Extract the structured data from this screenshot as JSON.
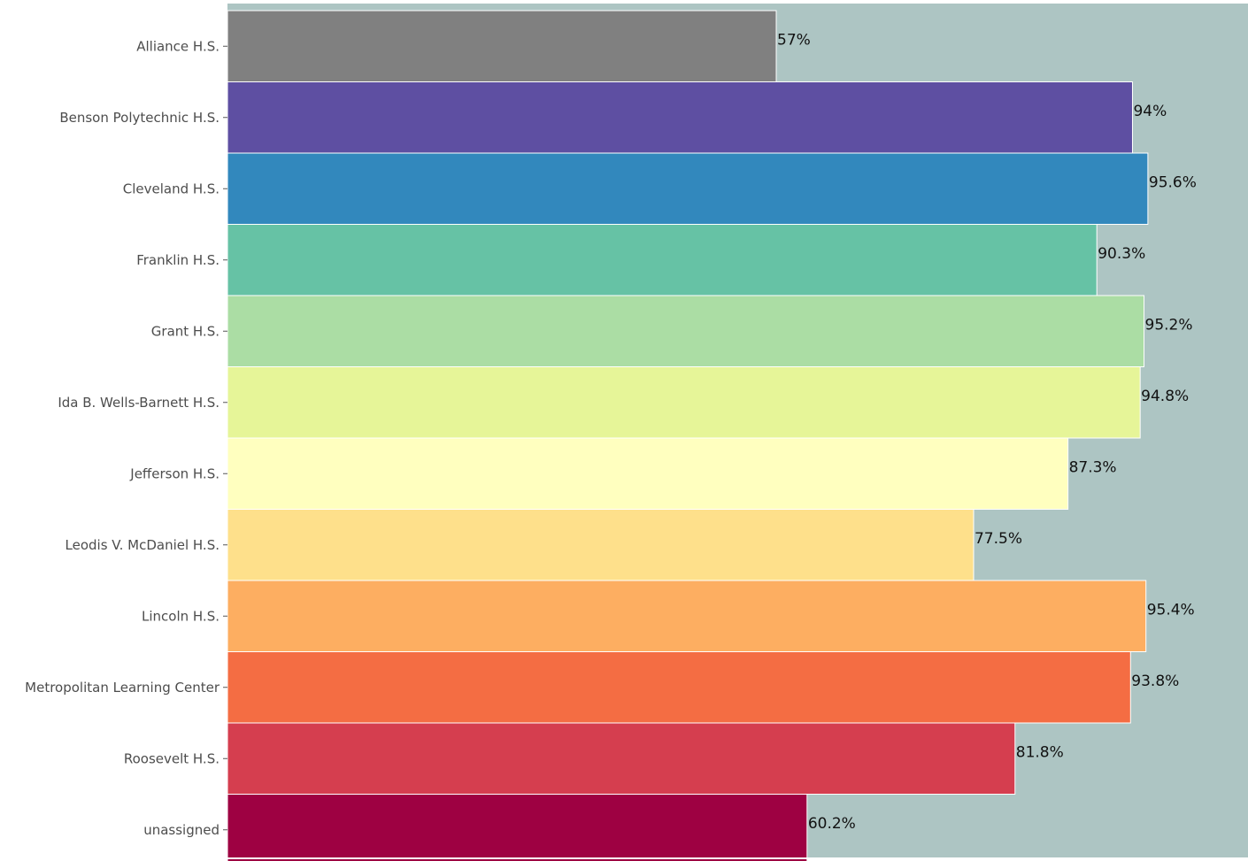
{
  "chart_data": {
    "type": "bar",
    "orientation": "horizontal",
    "categories": [
      "Alliance H.S.",
      "Benson Polytechnic H.S.",
      "Cleveland H.S.",
      "Franklin H.S.",
      "Grant H.S.",
      "Ida B. Wells-Barnett H.S.",
      "Jefferson H.S.",
      "Leodis V. McDaniel H.S.",
      "Lincoln H.S.",
      "Metropolitan Learning Center",
      "Roosevelt H.S.",
      "unassigned"
    ],
    "values": [
      57,
      94,
      95.6,
      90.3,
      95.2,
      94.8,
      87.3,
      77.5,
      95.4,
      93.8,
      81.8,
      60.2
    ],
    "data_labels": [
      "57%",
      "94%",
      "95.6%",
      "90.3%",
      "95.2%",
      "94.8%",
      "87.3%",
      "77.5%",
      "95.4%",
      "93.8%",
      "81.8%",
      "60.2%"
    ],
    "colors": [
      "#808080",
      "#5e4fa2",
      "#3288bd",
      "#66c2a5",
      "#abdda4",
      "#e6f598",
      "#ffffbf",
      "#fee08b",
      "#fdae61",
      "#f46d43",
      "#d53e4f",
      "#9e0142"
    ],
    "background_color": "#adc5c3",
    "xlim": [
      0,
      106
    ],
    "grid": false,
    "legend": "none"
  }
}
